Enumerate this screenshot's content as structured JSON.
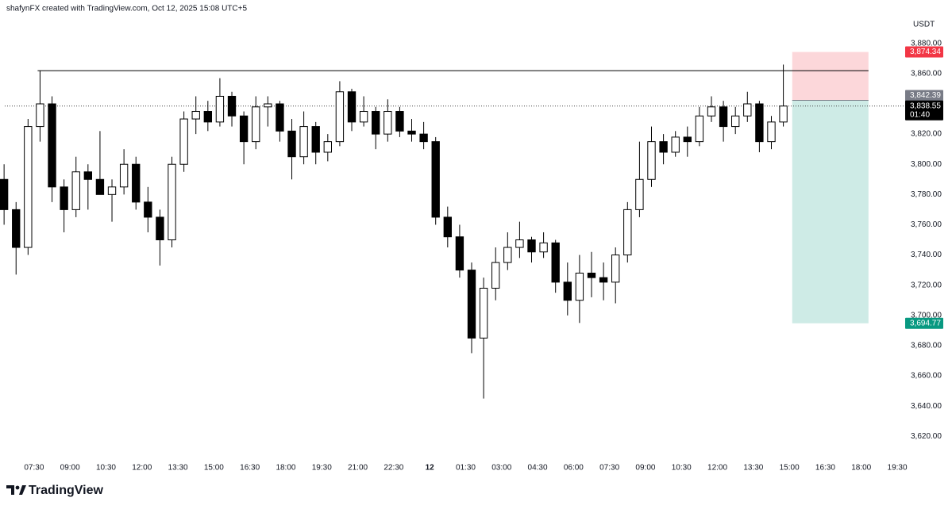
{
  "header": {
    "attribution": "shafynFX created with TradingView.com, Oct 12, 2025 15:08 UTC+5"
  },
  "footer": {
    "logo": "TradingView"
  },
  "chart_data": {
    "type": "candlestick",
    "currency": "USDT",
    "x": [
      6.25,
      6.75,
      7.25,
      7.75,
      8.25,
      8.75,
      9.25,
      9.75,
      10.25,
      10.75,
      11.25,
      11.75,
      12.25,
      12.75,
      13.25,
      13.75,
      14.25,
      14.75,
      15.25,
      15.75,
      16.25,
      16.75,
      17.25,
      17.75,
      18.25,
      18.75,
      19.25,
      19.75,
      20.25,
      20.75,
      21.25,
      21.75,
      22.25,
      22.75,
      23.25,
      23.75,
      24.25,
      24.75,
      25.25,
      25.75,
      26.25,
      26.75,
      27.25,
      27.75,
      28.25,
      28.75,
      29.25,
      29.75,
      30.25,
      30.75,
      31.25,
      31.75,
      32.25,
      32.75,
      33.25,
      33.75,
      34.25,
      34.75,
      35.25,
      35.75,
      36.25,
      36.75,
      37.25,
      37.75,
      38.25,
      38.75
    ],
    "open": [
      3790,
      3770,
      3745,
      3825,
      3840,
      3785,
      3770,
      3795,
      3790,
      3780,
      3785,
      3800,
      3775,
      3765,
      3750,
      3800,
      3830,
      3835,
      3828,
      3845,
      3832,
      3815,
      3838,
      3840,
      3822,
      3805,
      3825,
      3808,
      3815,
      3848,
      3828,
      3835,
      3820,
      3835,
      3822,
      3820,
      3815,
      3765,
      3752,
      3730,
      3685,
      3718,
      3735,
      3745,
      3750,
      3742,
      3748,
      3722,
      3710,
      3728,
      3725,
      3722,
      3740,
      3770,
      3790,
      3815,
      3808,
      3818,
      3815,
      3832,
      3838,
      3825,
      3832,
      3840,
      3815,
      3828
    ],
    "high": [
      3800,
      3775,
      3830,
      3862,
      3845,
      3790,
      3805,
      3800,
      3822,
      3790,
      3810,
      3805,
      3785,
      3770,
      3805,
      3835,
      3845,
      3842,
      3857,
      3848,
      3835,
      3845,
      3845,
      3842,
      3830,
      3835,
      3828,
      3820,
      3855,
      3850,
      3845,
      3838,
      3843,
      3838,
      3830,
      3828,
      3818,
      3772,
      3760,
      3735,
      3725,
      3745,
      3755,
      3762,
      3752,
      3755,
      3750,
      3735,
      3740,
      3742,
      3735,
      3745,
      3775,
      3815,
      3825,
      3820,
      3822,
      3825,
      3838,
      3845,
      3842,
      3838,
      3848,
      3842,
      3832,
      3866
    ],
    "low": [
      3760,
      3727,
      3740,
      3815,
      3775,
      3755,
      3765,
      3770,
      3780,
      3762,
      3780,
      3770,
      3755,
      3733,
      3745,
      3795,
      3820,
      3822,
      3825,
      3825,
      3800,
      3810,
      3825,
      3815,
      3790,
      3800,
      3800,
      3802,
      3812,
      3822,
      3825,
      3810,
      3815,
      3818,
      3815,
      3810,
      3760,
      3745,
      3725,
      3675,
      3645,
      3710,
      3730,
      3738,
      3735,
      3738,
      3715,
      3700,
      3695,
      3712,
      3710,
      3708,
      3735,
      3765,
      3785,
      3800,
      3805,
      3805,
      3812,
      3828,
      3815,
      3820,
      3828,
      3808,
      3810,
      3825
    ],
    "close": [
      3770,
      3745,
      3825,
      3840,
      3785,
      3770,
      3795,
      3790,
      3780,
      3785,
      3800,
      3775,
      3765,
      3750,
      3800,
      3830,
      3835,
      3828,
      3845,
      3832,
      3815,
      3838,
      3840,
      3822,
      3805,
      3825,
      3808,
      3815,
      3848,
      3828,
      3835,
      3820,
      3835,
      3822,
      3820,
      3815,
      3765,
      3752,
      3730,
      3685,
      3718,
      3735,
      3745,
      3750,
      3742,
      3748,
      3722,
      3710,
      3728,
      3725,
      3722,
      3740,
      3770,
      3790,
      3815,
      3808,
      3818,
      3815,
      3832,
      3838,
      3825,
      3832,
      3840,
      3815,
      3828,
      3838.55
    ],
    "up_color": "#ffffff",
    "down_color": "#000000",
    "wick_color": "#000000",
    "xlim": [
      6.08,
      43.83
    ],
    "xticks": [
      {
        "value": 7.5,
        "label": "07:30"
      },
      {
        "value": 9,
        "label": "09:00"
      },
      {
        "value": 10.5,
        "label": "10:30"
      },
      {
        "value": 12,
        "label": "12:00"
      },
      {
        "value": 13.5,
        "label": "13:30"
      },
      {
        "value": 15,
        "label": "15:00"
      },
      {
        "value": 16.5,
        "label": "16:30"
      },
      {
        "value": 18,
        "label": "18:00"
      },
      {
        "value": 19.5,
        "label": "19:30"
      },
      {
        "value": 21,
        "label": "21:00"
      },
      {
        "value": 22.5,
        "label": "22:30"
      },
      {
        "value": 24,
        "label": "12",
        "bold": true
      },
      {
        "value": 25.5,
        "label": "01:30"
      },
      {
        "value": 27,
        "label": "03:00"
      },
      {
        "value": 28.5,
        "label": "04:30"
      },
      {
        "value": 30,
        "label": "06:00"
      },
      {
        "value": 31.5,
        "label": "07:30"
      },
      {
        "value": 33,
        "label": "09:00"
      },
      {
        "value": 34.5,
        "label": "10:30"
      },
      {
        "value": 36,
        "label": "12:00"
      },
      {
        "value": 37.5,
        "label": "13:30"
      },
      {
        "value": 39,
        "label": "15:00"
      },
      {
        "value": 40.5,
        "label": "16:30"
      },
      {
        "value": 42,
        "label": "18:00"
      },
      {
        "value": 43.5,
        "label": "19:30"
      }
    ],
    "ylim": [
      3607,
      3893
    ],
    "yticks": [
      {
        "value": 3620,
        "label": "3,620.00"
      },
      {
        "value": 3640,
        "label": "3,640.00"
      },
      {
        "value": 3660,
        "label": "3,660.00"
      },
      {
        "value": 3680,
        "label": "3,680.00"
      },
      {
        "value": 3700,
        "label": "3,700.00"
      },
      {
        "value": 3720,
        "label": "3,720.00"
      },
      {
        "value": 3740,
        "label": "3,740.00"
      },
      {
        "value": 3760,
        "label": "3,760.00"
      },
      {
        "value": 3780,
        "label": "3,780.00"
      },
      {
        "value": 3800,
        "label": "3,800.00"
      },
      {
        "value": 3820,
        "label": "3,820.00"
      },
      {
        "value": 3840,
        "label": "3,840.00"
      },
      {
        "value": 3860,
        "label": "3,860.00"
      },
      {
        "value": 3880,
        "label": "3,880.00"
      }
    ],
    "level": {
      "value": 3862,
      "x": [
        7.65,
        42.3
      ]
    },
    "last_price": {
      "value": 3838.55,
      "label": "3,838.55",
      "countdown": "01:40"
    },
    "position": {
      "x": [
        39.12,
        42.3
      ],
      "stop": {
        "value": 3874.34,
        "label": "3,874.34",
        "color": "#f23645"
      },
      "entry": {
        "value": 3842.39,
        "label": "3,842.39",
        "color": "#787b86"
      },
      "target": {
        "value": 3694.77,
        "label": "3,694.77",
        "color": "#089981"
      }
    }
  }
}
